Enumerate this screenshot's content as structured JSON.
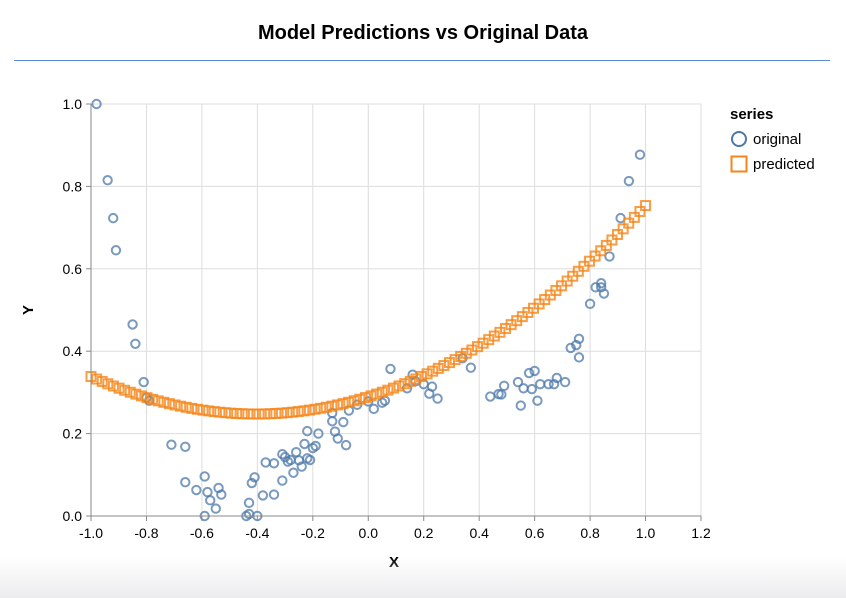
{
  "title": "Model Predictions vs Original Data",
  "chart_data": {
    "type": "scatter",
    "title": "Model Predictions vs Original Data",
    "xlabel": "X",
    "ylabel": "Y",
    "xlim": [
      -1.0,
      1.2
    ],
    "ylim": [
      0.0,
      1.0
    ],
    "x_ticks": [
      "-1.0",
      "-0.8",
      "-0.6",
      "-0.4",
      "-0.2",
      "0.0",
      "0.2",
      "0.4",
      "0.6",
      "0.8",
      "1.0",
      "1.2"
    ],
    "y_ticks": [
      "0.0",
      "0.2",
      "0.4",
      "0.6",
      "0.8",
      "1.0"
    ],
    "grid": true,
    "legend": {
      "title": "series",
      "position": "right"
    },
    "series": [
      {
        "name": "original",
        "marker": "circle",
        "color": "#4c78a8",
        "points": [
          [
            -0.98,
            1.0
          ],
          [
            -0.94,
            0.815
          ],
          [
            -0.92,
            0.723
          ],
          [
            -0.91,
            0.645
          ],
          [
            -0.85,
            0.465
          ],
          [
            -0.84,
            0.418
          ],
          [
            -0.81,
            0.325
          ],
          [
            -0.8,
            0.287
          ],
          [
            -0.79,
            0.28
          ],
          [
            -0.71,
            0.173
          ],
          [
            -0.66,
            0.168
          ],
          [
            -0.66,
            0.082
          ],
          [
            -0.62,
            0.063
          ],
          [
            -0.59,
            0.096
          ],
          [
            -0.58,
            0.058
          ],
          [
            -0.57,
            0.038
          ],
          [
            -0.55,
            0.018
          ],
          [
            -0.54,
            0.068
          ],
          [
            -0.53,
            0.052
          ],
          [
            -0.59,
            0.0
          ],
          [
            -0.44,
            0.0
          ],
          [
            -0.43,
            0.005
          ],
          [
            -0.43,
            0.032
          ],
          [
            -0.41,
            0.094
          ],
          [
            -0.42,
            0.08
          ],
          [
            -0.4,
            0.0
          ],
          [
            -0.38,
            0.05
          ],
          [
            -0.37,
            0.13
          ],
          [
            -0.34,
            0.128
          ],
          [
            -0.34,
            0.052
          ],
          [
            -0.31,
            0.15
          ],
          [
            -0.3,
            0.143
          ],
          [
            -0.31,
            0.086
          ],
          [
            -0.29,
            0.132
          ],
          [
            -0.28,
            0.136
          ],
          [
            -0.27,
            0.105
          ],
          [
            -0.26,
            0.155
          ],
          [
            -0.25,
            0.135
          ],
          [
            -0.24,
            0.12
          ],
          [
            -0.23,
            0.175
          ],
          [
            -0.22,
            0.206
          ],
          [
            -0.22,
            0.14
          ],
          [
            -0.21,
            0.136
          ],
          [
            -0.2,
            0.165
          ],
          [
            -0.19,
            0.17
          ],
          [
            -0.18,
            0.2
          ],
          [
            -0.13,
            0.25
          ],
          [
            -0.13,
            0.23
          ],
          [
            -0.12,
            0.205
          ],
          [
            -0.11,
            0.188
          ],
          [
            -0.09,
            0.228
          ],
          [
            -0.08,
            0.172
          ],
          [
            -0.07,
            0.256
          ],
          [
            -0.04,
            0.27
          ],
          [
            0.0,
            0.278
          ],
          [
            0.02,
            0.26
          ],
          [
            0.05,
            0.275
          ],
          [
            0.06,
            0.28
          ],
          [
            0.08,
            0.357
          ],
          [
            0.14,
            0.31
          ],
          [
            0.16,
            0.343
          ],
          [
            0.17,
            0.327
          ],
          [
            0.2,
            0.32
          ],
          [
            0.22,
            0.297
          ],
          [
            0.23,
            0.314
          ],
          [
            0.25,
            0.285
          ],
          [
            0.34,
            0.383
          ],
          [
            0.37,
            0.36
          ],
          [
            0.44,
            0.29
          ],
          [
            0.47,
            0.296
          ],
          [
            0.48,
            0.295
          ],
          [
            0.49,
            0.316
          ],
          [
            0.54,
            0.325
          ],
          [
            0.55,
            0.268
          ],
          [
            0.56,
            0.31
          ],
          [
            0.58,
            0.347
          ],
          [
            0.6,
            0.352
          ],
          [
            0.59,
            0.308
          ],
          [
            0.61,
            0.28
          ],
          [
            0.62,
            0.32
          ],
          [
            0.65,
            0.32
          ],
          [
            0.67,
            0.32
          ],
          [
            0.68,
            0.335
          ],
          [
            0.71,
            0.325
          ],
          [
            0.73,
            0.408
          ],
          [
            0.75,
            0.415
          ],
          [
            0.76,
            0.43
          ],
          [
            0.76,
            0.385
          ],
          [
            0.8,
            0.515
          ],
          [
            0.82,
            0.555
          ],
          [
            0.84,
            0.565
          ],
          [
            0.84,
            0.555
          ],
          [
            0.85,
            0.54
          ],
          [
            0.87,
            0.63
          ],
          [
            0.91,
            0.723
          ],
          [
            0.94,
            0.813
          ],
          [
            0.98,
            0.877
          ]
        ]
      },
      {
        "name": "predicted",
        "marker": "square",
        "color": "#f58518",
        "model": {
          "kind": "quadratic",
          "coefficients": [
            0.2895,
            0.2075,
            0.2565
          ],
          "x_from": -1.0,
          "x_to": 1.0,
          "count": 100
        }
      }
    ]
  }
}
